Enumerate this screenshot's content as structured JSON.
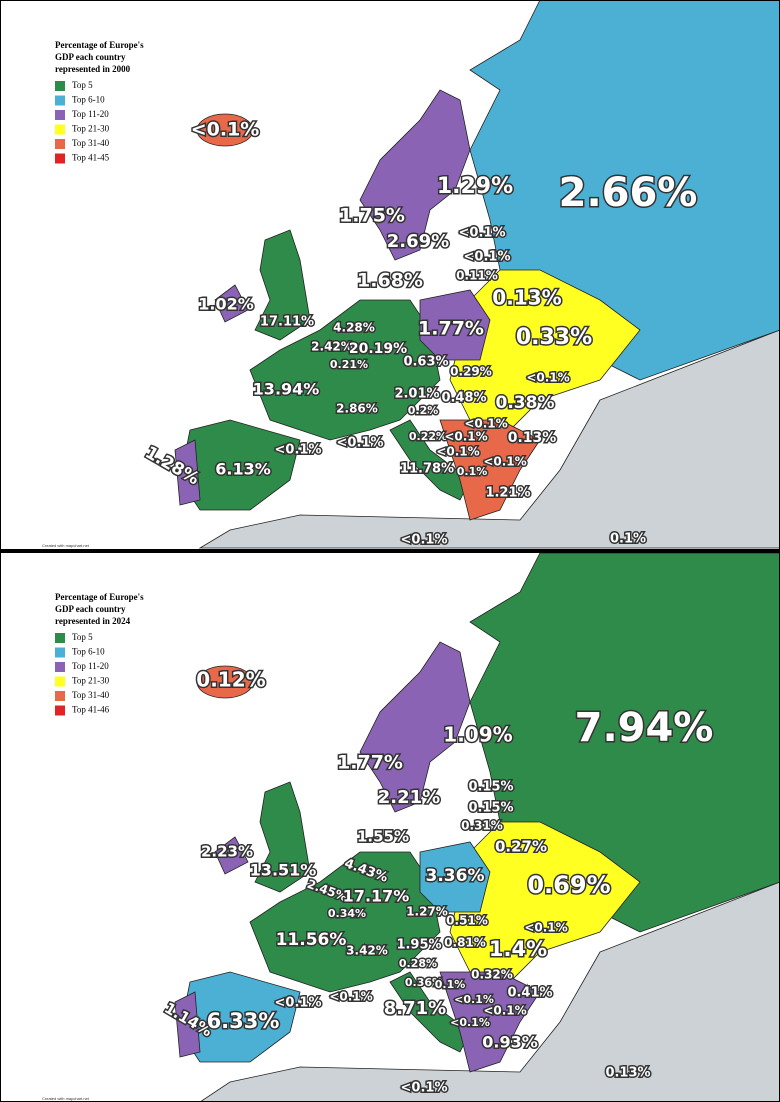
{
  "maps": [
    {
      "legend": {
        "title_lines": [
          "Percentage of Europe's",
          "GDP each country",
          "represented in 2000"
        ],
        "items": [
          {
            "label": "Top 5",
            "color": "#2e8b4a"
          },
          {
            "label": "Top 6-10",
            "color": "#4bb0d4"
          },
          {
            "label": "Top 11-20",
            "color": "#8a63b5"
          },
          {
            "label": "Top 21-30",
            "color": "#ffff22"
          },
          {
            "label": "Top 31-40",
            "color": "#e8694a"
          },
          {
            "label": "Top 41-45",
            "color": "#e02424"
          }
        ]
      },
      "labels": [
        "<0.1%",
        "1.29%",
        "2.66%",
        "1.75%",
        "2.69%",
        "<0.1%",
        "<0.1%",
        "0.11%",
        "1.68%",
        "0.13%",
        "1.02%",
        "17.11%",
        "4.28%",
        "1.77%",
        "2.42%",
        "20.19%",
        "0.33%",
        "0.21%",
        "0.63%",
        "0.29%",
        "<0.1%",
        "13.94%",
        "2.01%",
        "0.48%",
        "0.38%",
        "2.86%",
        "0.2%",
        "<0.1%",
        "<0.1%",
        "<0.1%",
        "0.22%",
        "<0.1%",
        "0.13%",
        "1.28%",
        "6.13%",
        "<0.1%",
        "11.78%",
        "<0.1%",
        "0.1%",
        "1.21%",
        "<0.1%",
        "0.1%"
      ],
      "credit": "Created with mapchart.net"
    },
    {
      "legend": {
        "title_lines": [
          "Percentage of Europe's",
          "GDP each country",
          "represented in 2024"
        ],
        "items": [
          {
            "label": "Top 5",
            "color": "#2e8b4a"
          },
          {
            "label": "Top 6-10",
            "color": "#4bb0d4"
          },
          {
            "label": "Top 11-20",
            "color": "#8a63b5"
          },
          {
            "label": "Top 21-30",
            "color": "#ffff22"
          },
          {
            "label": "Top 31-40",
            "color": "#e8694a"
          },
          {
            "label": "Top 41-46",
            "color": "#e02424"
          }
        ]
      },
      "labels": [
        "0.12%",
        "1.09%",
        "7.94%",
        "1.77%",
        "2.21%",
        "0.15%",
        "0.15%",
        "0.31%",
        "1.55%",
        "0.27%",
        "2.23%",
        "13.51%",
        "4.43%",
        "3.36%",
        "2.45%",
        "17.17%",
        "0.69%",
        "0.34%",
        "1.27%",
        "0.51%",
        "<0.1%",
        "11.56%",
        "1.95%",
        "0.81%",
        "1.4%",
        "3.42%",
        "0.28%",
        "0.32%",
        "0.36%",
        "0.1%",
        "0.41%",
        "<0.1%",
        "<0.1%",
        "<0.1%",
        "<0.1%",
        "1.14%",
        "6.33%",
        "8.71%",
        "<0.1%",
        "0.93%",
        "0.13%",
        "<0.1%"
      ],
      "credit": "Created with mapchart.net"
    }
  ]
}
